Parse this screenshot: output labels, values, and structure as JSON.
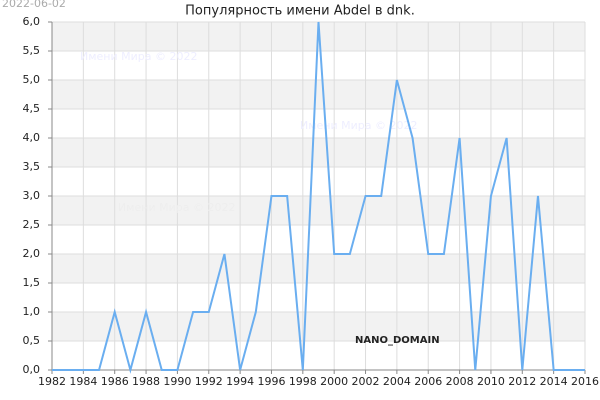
{
  "chart_data": {
    "type": "line",
    "title": "Популярность имени Abdel в dnk.",
    "x": [
      1982,
      1983,
      1984,
      1985,
      1986,
      1987,
      1988,
      1989,
      1990,
      1991,
      1992,
      1993,
      1994,
      1995,
      1996,
      1997,
      1998,
      1999,
      2000,
      2001,
      2002,
      2003,
      2004,
      2005,
      2006,
      2007,
      2008,
      2009,
      2010,
      2011,
      2012,
      2013,
      2014,
      2015,
      2016
    ],
    "series": [
      {
        "name": "Abdel",
        "color": "#6aaef0",
        "values": [
          0,
          0,
          0,
          0,
          1,
          0,
          1,
          0,
          0,
          1,
          1,
          2,
          0,
          1,
          3,
          3,
          0,
          6,
          2,
          2,
          3,
          3,
          5,
          4,
          2,
          2,
          4,
          0,
          3,
          4,
          0,
          3,
          0,
          0,
          0
        ]
      }
    ],
    "xlim": [
      1982,
      2016
    ],
    "xticks": [
      1982,
      1984,
      1986,
      1988,
      1990,
      1992,
      1994,
      1996,
      1998,
      2000,
      2002,
      2004,
      2006,
      2008,
      2010,
      2012,
      2014,
      2016
    ],
    "ylim": [
      0,
      6
    ],
    "yticks": [
      {
        "value": 0,
        "label": "0,0"
      },
      {
        "value": 0.5,
        "label": "0,5"
      },
      {
        "value": 1,
        "label": "1,0"
      },
      {
        "value": 1.5,
        "label": "1,5"
      },
      {
        "value": 2,
        "label": "2,0"
      },
      {
        "value": 2.5,
        "label": "2,5"
      },
      {
        "value": 3,
        "label": "3,0"
      },
      {
        "value": 3.5,
        "label": "3,5"
      },
      {
        "value": 4,
        "label": "4,0"
      },
      {
        "value": 4.5,
        "label": "4,5"
      },
      {
        "value": 5,
        "label": "5,0"
      },
      {
        "value": 5.5,
        "label": "5,5"
      },
      {
        "value": 6,
        "label": "6,0"
      }
    ],
    "grid": true,
    "banded": true,
    "annotations": [
      "2022-06-02",
      "Имени Мира © 2022",
      "Имени Мира © 2022",
      "Имени Мира © 2022",
      "NANO_DOMAIN"
    ]
  }
}
